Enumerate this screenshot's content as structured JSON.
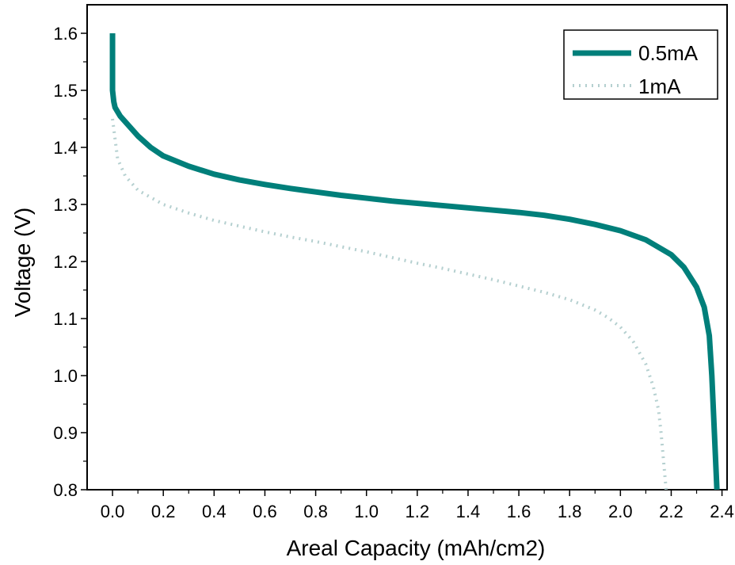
{
  "chart_data": {
    "type": "line",
    "title": "",
    "xlabel": "Areal Capacity (mAh/cm2)",
    "ylabel": "Voltage (V)",
    "xlim": [
      -0.1,
      2.42
    ],
    "ylim": [
      0.8,
      1.65
    ],
    "x_ticks": [
      0.0,
      0.2,
      0.4,
      0.6,
      0.8,
      1.0,
      1.2,
      1.4,
      1.6,
      1.8,
      2.0,
      2.2,
      2.4
    ],
    "x_tick_labels": [
      "0.0",
      "0.2",
      "0.4",
      "0.6",
      "0.8",
      "1.0",
      "1.2",
      "1.4",
      "1.6",
      "1.8",
      "2.0",
      "2.2",
      "2.4"
    ],
    "y_ticks": [
      0.8,
      0.9,
      1.0,
      1.1,
      1.2,
      1.3,
      1.4,
      1.5,
      1.6
    ],
    "y_tick_labels": [
      "0.8",
      "0.9",
      "1.0",
      "1.1",
      "1.2",
      "1.3",
      "1.4",
      "1.5",
      "1.6"
    ],
    "grid": false,
    "legend_position": "top-right",
    "series": [
      {
        "name": "0.5mA",
        "color": "#007F7A",
        "style": "solid",
        "x": [
          0.0,
          0.0,
          0.005,
          0.01,
          0.03,
          0.06,
          0.1,
          0.15,
          0.2,
          0.3,
          0.4,
          0.5,
          0.6,
          0.7,
          0.8,
          0.9,
          1.0,
          1.1,
          1.2,
          1.3,
          1.4,
          1.5,
          1.6,
          1.7,
          1.8,
          1.9,
          2.0,
          2.1,
          2.2,
          2.25,
          2.3,
          2.33,
          2.35,
          2.36,
          2.37,
          2.375,
          2.38
        ],
        "y": [
          1.6,
          1.5,
          1.48,
          1.47,
          1.455,
          1.44,
          1.42,
          1.4,
          1.385,
          1.367,
          1.353,
          1.343,
          1.335,
          1.328,
          1.322,
          1.316,
          1.311,
          1.306,
          1.302,
          1.298,
          1.294,
          1.29,
          1.286,
          1.281,
          1.274,
          1.265,
          1.254,
          1.238,
          1.212,
          1.19,
          1.155,
          1.12,
          1.07,
          1.0,
          0.9,
          0.85,
          0.8
        ]
      },
      {
        "name": "1mA",
        "color": "#B5D0D0",
        "style": "dotted",
        "x": [
          0.0,
          0.02,
          0.05,
          0.1,
          0.2,
          0.3,
          0.4,
          0.5,
          0.6,
          0.7,
          0.8,
          0.9,
          1.0,
          1.1,
          1.2,
          1.3,
          1.4,
          1.5,
          1.6,
          1.7,
          1.8,
          1.9,
          1.95,
          2.0,
          2.05,
          2.1,
          2.13,
          2.15,
          2.16,
          2.17,
          2.18
        ],
        "y": [
          1.45,
          1.38,
          1.35,
          1.325,
          1.3,
          1.285,
          1.272,
          1.262,
          1.252,
          1.243,
          1.235,
          1.226,
          1.217,
          1.207,
          1.197,
          1.188,
          1.178,
          1.168,
          1.157,
          1.146,
          1.133,
          1.115,
          1.102,
          1.085,
          1.06,
          1.02,
          0.98,
          0.94,
          0.9,
          0.85,
          0.8
        ]
      }
    ]
  }
}
